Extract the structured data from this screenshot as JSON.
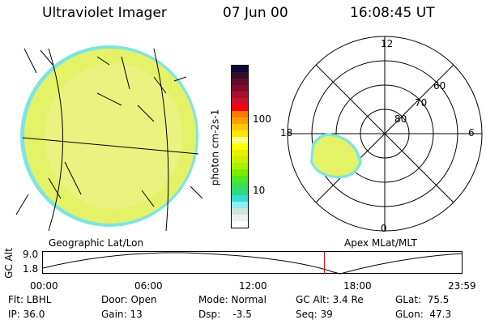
{
  "header": {
    "instrument": "Ultraviolet Imager",
    "date": "07 Jun 00",
    "time": "16:08:45 UT"
  },
  "colorbar": {
    "label": "photon cm-2s-1",
    "ticks": [
      "100",
      "10"
    ],
    "colors": [
      "#0a0a3a",
      "#3a0a2a",
      "#600a30",
      "#800a30",
      "#a8102c",
      "#cc1030",
      "#ff0000",
      "#ff7800",
      "#ffa000",
      "#ffc800",
      "#ffe800",
      "#ffff80",
      "#ffff00",
      "#e6f000",
      "#ccf000",
      "#aaf000",
      "#7cec00",
      "#50e820",
      "#38e050",
      "#30d880",
      "#30e0d8",
      "#90eef0",
      "#d0e4e4",
      "#e8f4ee",
      "#ffffff"
    ]
  },
  "polar": {
    "labels": {
      "top": "12",
      "bottom": "0",
      "left": "18",
      "right": "6"
    },
    "rings": [
      "80",
      "70",
      "60"
    ]
  },
  "captions": {
    "left": "Geographic Lat/Lon",
    "right": "Apex MLat/MLT"
  },
  "timeline": {
    "ylabel": "GC Alt",
    "yticks": [
      "9.0",
      "1.8"
    ],
    "xticks": [
      "00:00",
      "06:00",
      "12:00",
      "18:00",
      "23:59"
    ],
    "current_fraction": 0.672
  },
  "info": [
    [
      "Flt: LBHL",
      "Door: Open",
      "Mode: Normal",
      "GC Alt: 3.4 Re",
      "GLat:  75.5"
    ],
    [
      "IP: 36.0",
      "Gain: 13",
      "Dsp:    -3.5",
      "Seq: 39",
      "GLon:  47.3"
    ]
  ]
}
